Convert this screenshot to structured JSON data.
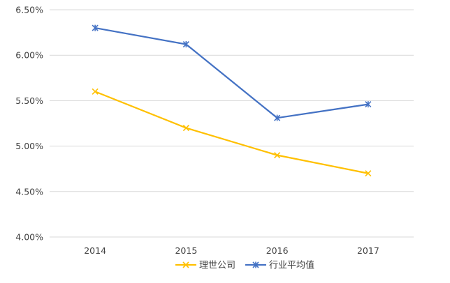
{
  "chart_data": {
    "type": "line",
    "categories": [
      "2014",
      "2015",
      "2016",
      "2017"
    ],
    "series": [
      {
        "name": "理世公司",
        "values": [
          5.6,
          5.2,
          4.9,
          4.7
        ],
        "color": "#ffc000",
        "marker": "x"
      },
      {
        "name": "行业平均值",
        "values": [
          6.3,
          6.12,
          5.31,
          5.46
        ],
        "color": "#4472c4",
        "marker": "star"
      }
    ],
    "yticks": [
      "4.00%",
      "4.50%",
      "5.00%",
      "5.50%",
      "6.00%",
      "6.50%"
    ],
    "ylim": [
      4.0,
      6.5
    ],
    "grid": true,
    "legend_position": "bottom"
  }
}
